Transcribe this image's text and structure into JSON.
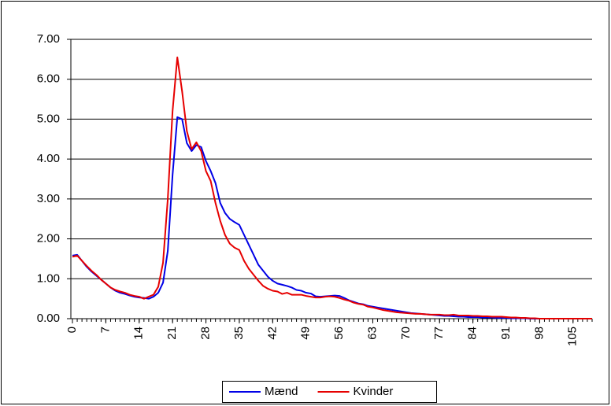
{
  "chart_data": {
    "type": "line",
    "x": [
      0,
      1,
      2,
      3,
      4,
      5,
      6,
      7,
      8,
      9,
      10,
      11,
      12,
      13,
      14,
      15,
      16,
      17,
      18,
      19,
      20,
      21,
      22,
      23,
      24,
      25,
      26,
      27,
      28,
      29,
      30,
      31,
      32,
      33,
      34,
      35,
      36,
      37,
      38,
      39,
      40,
      41,
      42,
      43,
      44,
      45,
      46,
      47,
      48,
      49,
      50,
      51,
      52,
      53,
      54,
      55,
      56,
      57,
      58,
      59,
      60,
      61,
      62,
      63,
      64,
      65,
      66,
      67,
      68,
      69,
      70,
      71,
      72,
      73,
      74,
      75,
      76,
      77,
      78,
      79,
      80,
      81,
      82,
      83,
      84,
      85,
      86,
      87,
      88,
      89,
      90,
      91,
      92,
      93,
      94,
      95,
      96,
      97,
      98,
      99,
      100,
      101,
      102,
      103,
      104,
      105,
      106,
      107,
      108,
      109
    ],
    "series": [
      {
        "name": "Mænd",
        "color": "#0000e6",
        "values": [
          1.58,
          1.6,
          1.45,
          1.3,
          1.18,
          1.08,
          0.98,
          0.88,
          0.78,
          0.7,
          0.65,
          0.62,
          0.58,
          0.55,
          0.53,
          0.52,
          0.5,
          0.55,
          0.65,
          0.9,
          1.7,
          3.6,
          5.05,
          5.0,
          4.4,
          4.2,
          4.35,
          4.3,
          3.95,
          3.7,
          3.4,
          2.9,
          2.65,
          2.5,
          2.42,
          2.35,
          2.1,
          1.85,
          1.6,
          1.35,
          1.2,
          1.05,
          0.95,
          0.88,
          0.85,
          0.82,
          0.78,
          0.72,
          0.7,
          0.65,
          0.63,
          0.56,
          0.55,
          0.56,
          0.57,
          0.58,
          0.57,
          0.52,
          0.46,
          0.42,
          0.38,
          0.36,
          0.32,
          0.3,
          0.28,
          0.26,
          0.24,
          0.22,
          0.2,
          0.18,
          0.16,
          0.14,
          0.13,
          0.12,
          0.11,
          0.1,
          0.09,
          0.08,
          0.07,
          0.07,
          0.06,
          0.05,
          0.05,
          0.04,
          0.04,
          0.04,
          0.03,
          0.03,
          0.03,
          0.02,
          0.02,
          0.02,
          0.01,
          0.01,
          0.01,
          0.01,
          0,
          0,
          0,
          0,
          0,
          0,
          0,
          0,
          0,
          0,
          0,
          0,
          0,
          0
        ]
      },
      {
        "name": "Kvinder",
        "color": "#e60000",
        "values": [
          1.55,
          1.58,
          1.45,
          1.32,
          1.2,
          1.1,
          0.98,
          0.88,
          0.78,
          0.72,
          0.68,
          0.65,
          0.6,
          0.57,
          0.55,
          0.5,
          0.55,
          0.6,
          0.8,
          1.4,
          3.0,
          5.2,
          6.55,
          5.7,
          4.7,
          4.25,
          4.42,
          4.2,
          3.7,
          3.45,
          2.9,
          2.45,
          2.1,
          1.88,
          1.78,
          1.72,
          1.45,
          1.25,
          1.1,
          0.95,
          0.82,
          0.75,
          0.7,
          0.68,
          0.62,
          0.65,
          0.6,
          0.6,
          0.6,
          0.57,
          0.55,
          0.53,
          0.53,
          0.55,
          0.56,
          0.55,
          0.52,
          0.48,
          0.45,
          0.4,
          0.37,
          0.35,
          0.3,
          0.28,
          0.25,
          0.22,
          0.2,
          0.18,
          0.16,
          0.15,
          0.14,
          0.13,
          0.12,
          0.12,
          0.11,
          0.1,
          0.1,
          0.1,
          0.09,
          0.09,
          0.1,
          0.08,
          0.08,
          0.08,
          0.07,
          0.07,
          0.06,
          0.06,
          0.05,
          0.05,
          0.05,
          0.04,
          0.03,
          0.03,
          0.02,
          0.02,
          0.01,
          0.01,
          0,
          0,
          0,
          0,
          0,
          0,
          0,
          0,
          0,
          0,
          0,
          0
        ]
      }
    ],
    "xlim": [
      0,
      109
    ],
    "xticks": [
      0,
      7,
      14,
      21,
      28,
      35,
      42,
      49,
      56,
      63,
      70,
      77,
      84,
      91,
      98,
      105
    ],
    "ylim": [
      0,
      7
    ],
    "yticks": [
      {
        "value": 0,
        "label": "0.00"
      },
      {
        "value": 1,
        "label": "1.00"
      },
      {
        "value": 2,
        "label": "2.00"
      },
      {
        "value": 3,
        "label": "3.00"
      },
      {
        "value": 4,
        "label": "4.00"
      },
      {
        "value": 5,
        "label": "5.00"
      },
      {
        "value": 6,
        "label": "6.00"
      },
      {
        "value": 7,
        "label": "7.00"
      }
    ],
    "grid": true,
    "legend": "bottom"
  }
}
